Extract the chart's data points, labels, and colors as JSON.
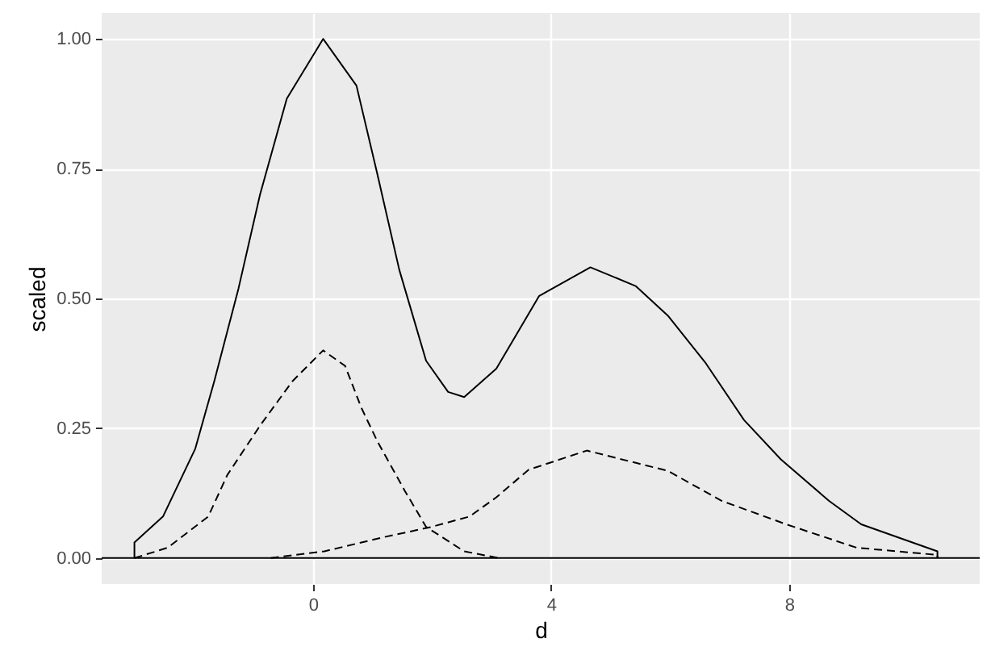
{
  "chart_data": {
    "type": "line",
    "xlabel": "d",
    "ylabel": "scaled",
    "xlim": [
      -3.55,
      11.2
    ],
    "ylim": [
      -0.05,
      1.05
    ],
    "xticks": [
      0,
      4,
      8
    ],
    "yticks": [
      {
        "value": 0,
        "label": "0.00"
      },
      {
        "value": 0.25,
        "label": "0.25"
      },
      {
        "value": 0.5,
        "label": "0.50"
      },
      {
        "value": 0.75,
        "label": "0.75"
      },
      {
        "value": 1,
        "label": "1.00"
      }
    ],
    "grid": true,
    "legend": false,
    "ref_lines": [
      {
        "axis": "y",
        "value": 0,
        "color": "#000000",
        "line_style": "solid"
      }
    ],
    "series": [
      {
        "color": "#000000",
        "line_style": "solid",
        "x": [
          -3.0,
          -3.0,
          -2.52,
          -1.98,
          -1.66,
          -1.25,
          -0.89,
          -0.44,
          0.17,
          0.73,
          1.08,
          1.45,
          1.9,
          2.27,
          2.54,
          3.08,
          3.8,
          4.66,
          5.42,
          5.96,
          6.6,
          7.24,
          7.86,
          8.67,
          9.21,
          10.49,
          10.49
        ],
        "values": [
          0,
          0.03,
          0.08,
          0.21,
          0.34,
          0.52,
          0.7,
          0.885,
          1.0,
          0.91,
          0.74,
          0.555,
          0.38,
          0.32,
          0.31,
          0.365,
          0.505,
          0.56,
          0.524,
          0.467,
          0.375,
          0.266,
          0.19,
          0.11,
          0.065,
          0.013,
          0
        ]
      },
      {
        "color": "#000000",
        "line_style": "dashed",
        "x": [
          -3.0,
          -2.44,
          -1.76,
          -1.44,
          -0.89,
          -0.35,
          0.17,
          0.54,
          0.81,
          1.08,
          1.54,
          1.9,
          2.54,
          3.12
        ],
        "values": [
          0.0,
          0.02,
          0.08,
          0.16,
          0.255,
          0.34,
          0.4,
          0.37,
          0.29,
          0.225,
          0.13,
          0.06,
          0.013,
          0.0
        ]
      },
      {
        "color": "#000000",
        "line_style": "dashed",
        "x": [
          -0.71,
          0.19,
          1.18,
          1.99,
          2.63,
          3.08,
          3.62,
          4.6,
          5.96,
          6.87,
          7.95,
          9.13,
          10.49,
          10.49
        ],
        "values": [
          0.0,
          0.013,
          0.04,
          0.06,
          0.08,
          0.117,
          0.17,
          0.207,
          0.168,
          0.11,
          0.065,
          0.02,
          0.006,
          0
        ]
      }
    ]
  }
}
